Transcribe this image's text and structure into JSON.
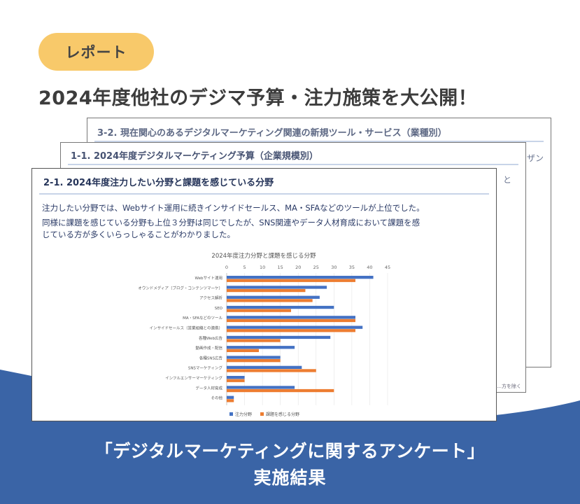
{
  "badge": {
    "label": "レポート"
  },
  "headline": "2024年度他社のデジマ予算・注力施策を大公開！",
  "pages": {
    "back": {
      "title": "3-2. 現在関心のあるデジタルマーケティング関連の新規ツール・サービス（業種別）",
      "side_text": "ザン"
    },
    "middle": {
      "title": "1-1. 2024年度デジタルマーケティング予算（企業規模別）",
      "side_text": "と",
      "footnote": "...方を除く"
    },
    "front": {
      "title": "2-1. 2024年度注力したい分野と課題を感じている分野",
      "body": [
        "注力したい分野では、Webサイト運用に続きインサイドセールス、MA・SFAなどのツールが上位でした。",
        "同様に課題を感じている分野も上位３分野は同じでしたが、SNS関連やデータ人材育成において課題を感",
        "じている方が多くいらっしゃることがわかりました。"
      ]
    }
  },
  "chart_data": {
    "type": "bar",
    "orientation": "horizontal",
    "title": "2024年度注力分野と課題を感じる分野",
    "xlim": [
      0,
      45
    ],
    "ticks": [
      "0",
      "5",
      "10",
      "15",
      "20",
      "25",
      "30",
      "35",
      "40",
      "45"
    ],
    "categories": [
      "Webサイト運用",
      "オウンドメディア（ブログ・コンテンツマーケ）",
      "アクセス解析",
      "SEO",
      "MA・SFAなどのツール",
      "インサイドセールス（営業組織との連携）",
      "各種Web広告",
      "動画作成・配信",
      "各種SNS広告",
      "SNSマーケティング",
      "インフルエンサーマーケティング",
      "データ人材育成",
      "その他"
    ],
    "series": [
      {
        "name": "注力分野",
        "color": "#4472c4",
        "values": [
          41,
          28,
          26,
          30,
          36,
          38,
          29,
          19,
          15,
          21,
          5,
          19,
          2
        ]
      },
      {
        "name": "課題を感じる分野",
        "color": "#ed7d31",
        "values": [
          36,
          22,
          24,
          18,
          36,
          36,
          15,
          9,
          15,
          25,
          5,
          30,
          2
        ]
      }
    ]
  },
  "footer": {
    "line1": "「デジタルマーケティングに関するアンケート」",
    "line2": "実施結果"
  },
  "colors": {
    "wave": "#3a64a6",
    "badge": "#f8c96a"
  }
}
